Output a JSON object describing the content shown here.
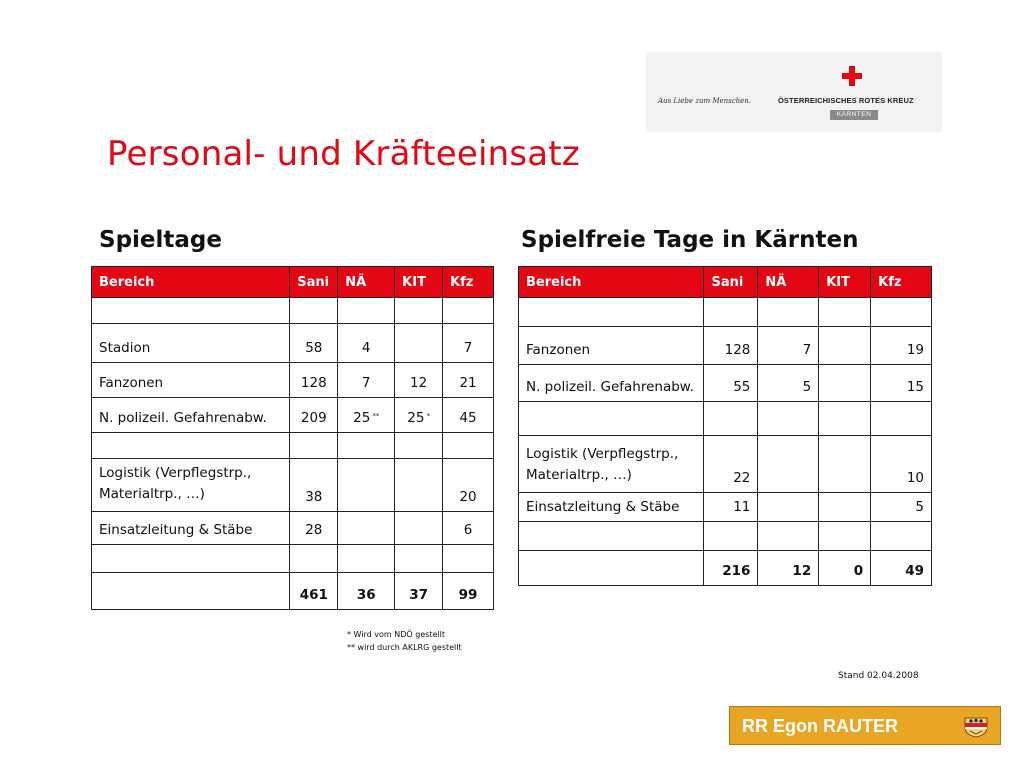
{
  "logo": {
    "slogan": "Aus Liebe zum Menschen.",
    "organization": "ÖSTERREICHISCHES ROTES KREUZ",
    "region": "KÄRNTEN"
  },
  "page_title": "Personal- und Kräfteeinsatz",
  "left_section": {
    "title": "Spieltage",
    "headers": [
      "Bereich",
      "Sani",
      "NÄ",
      "KIT",
      "Kfz"
    ],
    "rows": [
      [
        "",
        "",
        "",
        "",
        ""
      ],
      [
        "Stadion",
        "58",
        "4",
        "",
        "7"
      ],
      [
        "Fanzonen",
        "128",
        "7",
        "12",
        "21"
      ],
      [
        "N. polizeil. Gefahrenabw.",
        "209",
        "25",
        "25",
        "45"
      ],
      [
        "",
        "",
        "",
        "",
        ""
      ],
      [
        "Logistik (Verpflegstrp., Materialtrp., …)",
        "38",
        "",
        "",
        "20"
      ],
      [
        "Einsatzleitung & Stäbe",
        "28",
        "",
        "",
        "6"
      ],
      [
        "",
        "",
        "",
        "",
        ""
      ]
    ],
    "marks": {
      "na_gefahrenabw": "**",
      "kit_gefahrenabw": "*"
    },
    "total": [
      "",
      "461",
      "36",
      "37",
      "99"
    ]
  },
  "right_section": {
    "title": "Spielfreie Tage in Kärnten",
    "headers": [
      "Bereich",
      "Sani",
      "NÄ",
      "KIT",
      "Kfz"
    ],
    "rows": [
      [
        "",
        "",
        "",
        "",
        ""
      ],
      [
        "Fanzonen",
        "128",
        "7",
        "",
        "19"
      ],
      [
        "N. polizeil. Gefahrenabw.",
        "55",
        "5",
        "",
        "15"
      ],
      [
        "",
        "",
        "",
        "",
        ""
      ],
      [
        "Logistik (Verpflegstrp., Materialtrp., …)",
        "22",
        "",
        "",
        "10"
      ],
      [
        "Einsatzleitung & Stäbe",
        "11",
        "",
        "",
        "5"
      ],
      [
        "",
        "",
        "",
        "",
        ""
      ]
    ],
    "total": [
      "",
      "216",
      "12",
      "0",
      "49"
    ]
  },
  "footnotes": [
    "*  Wird vom NDÖ gestellt",
    "** wird durch AKLRG gestellt"
  ],
  "stand": "Stand 02.04.2008",
  "badge": {
    "name": "RR Egon RAUTER"
  },
  "colors": {
    "accent": "#e30613",
    "badge": "#e8a624"
  }
}
